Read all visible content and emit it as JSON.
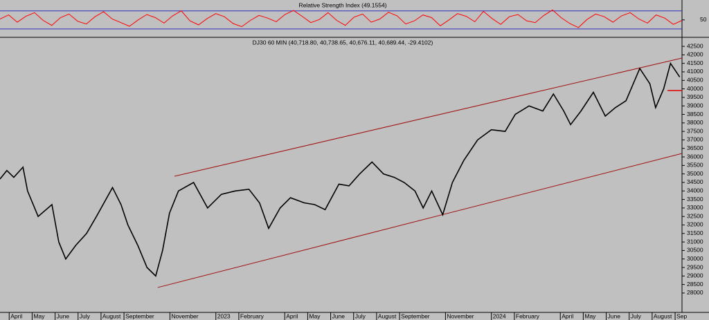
{
  "chart_data": [
    {
      "type": "line",
      "title": "Relative Strength Index (49.1554)",
      "color": "#ff0000",
      "level_color": "#3030c0",
      "values": [
        52,
        61,
        45,
        58,
        66,
        49,
        38,
        55,
        63,
        47,
        41,
        57,
        68,
        52,
        44,
        36,
        50,
        62,
        55,
        43,
        59,
        70,
        48,
        39,
        53,
        64,
        57,
        42,
        35,
        49,
        60,
        54,
        46,
        62,
        71,
        58,
        44,
        51,
        66,
        49,
        38,
        56,
        63,
        45,
        52,
        67,
        59,
        41,
        48,
        61,
        55,
        37,
        50,
        64,
        58,
        46,
        69,
        53,
        40,
        57,
        62,
        48,
        44,
        60,
        72,
        55,
        42,
        33,
        51,
        63,
        57,
        45,
        59,
        66,
        52,
        43,
        61,
        54,
        40,
        49
      ],
      "ylim": [
        13,
        91
      ],
      "yticks": [
        50
      ],
      "levels": [
        30,
        70
      ]
    },
    {
      "type": "line",
      "title": "DJ30 60 MIN (40,718.80, 40,738.65, 40,676.11, 40,689.44, -29.4102)",
      "color": "#000000",
      "trend_color": "#a01010",
      "x": [
        -0.4,
        -0.1,
        0.2,
        0.6,
        0.8,
        1.26,
        1.86,
        2.16,
        2.46,
        2.9,
        3.37,
        3.8,
        4.5,
        4.87,
        5.17,
        5.6,
        6.0,
        6.38,
        6.68,
        6.98,
        7.37,
        8.03,
        8.64,
        9.24,
        9.84,
        10.44,
        10.9,
        11.3,
        11.8,
        12.25,
        12.85,
        13.3,
        13.76,
        14.36,
        14.8,
        15.26,
        15.8,
        16.3,
        16.77,
        17.2,
        17.67,
        18.03,
        18.4,
        18.88,
        19.3,
        19.8,
        20.4,
        21.0,
        21.6,
        22.04,
        22.64,
        23.24,
        23.7,
        24.15,
        24.45,
        24.9,
        25.44,
        25.96,
        26.4,
        26.86,
        27.46,
        27.9,
        28.15,
        28.5,
        28.8,
        29.2
      ],
      "values": [
        34700,
        35200,
        34800,
        35400,
        34000,
        32500,
        33200,
        31000,
        30000,
        30800,
        31500,
        32500,
        34200,
        33200,
        32000,
        30800,
        29500,
        29000,
        30500,
        32700,
        34000,
        34500,
        33000,
        33800,
        34000,
        34100,
        33300,
        31800,
        33000,
        33600,
        33300,
        33200,
        32900,
        34400,
        34300,
        35000,
        35700,
        35000,
        34800,
        34500,
        34000,
        33000,
        34000,
        32600,
        34500,
        35800,
        37000,
        37600,
        37500,
        38500,
        39000,
        38700,
        39700,
        38700,
        37900,
        38700,
        39800,
        38400,
        38900,
        39300,
        41200,
        40300,
        38900,
        40000,
        41500,
        40700
      ],
      "trendlines": [
        {
          "x": [
            7.2,
            29.3
          ],
          "y": [
            34864,
            41810
          ]
        },
        {
          "x": [
            6.47,
            29.3
          ],
          "y": [
            28325,
            36204
          ]
        },
        {
          "x": [
            28.67,
            29.3
          ],
          "y": [
            39900,
            39900
          ]
        }
      ],
      "xlim": [
        -0.4,
        29.3
      ],
      "ylim": [
        26860,
        42990
      ],
      "xticks": [
        {
          "value": 0,
          "label": "April"
        },
        {
          "value": 1,
          "label": "May"
        },
        {
          "value": 2,
          "label": "June"
        },
        {
          "value": 3,
          "label": "July"
        },
        {
          "value": 4,
          "label": "August"
        },
        {
          "value": 5,
          "label": "September"
        },
        {
          "value": 7,
          "label": "November"
        },
        {
          "value": 9,
          "label": "2023"
        },
        {
          "value": 10,
          "label": "February"
        },
        {
          "value": 12,
          "label": "April"
        },
        {
          "value": 13,
          "label": "May"
        },
        {
          "value": 14,
          "label": "June"
        },
        {
          "value": 15,
          "label": "July"
        },
        {
          "value": 16,
          "label": "August"
        },
        {
          "value": 17,
          "label": "September"
        },
        {
          "value": 19,
          "label": "November"
        },
        {
          "value": 21,
          "label": "2024"
        },
        {
          "value": 22,
          "label": "February"
        },
        {
          "value": 24,
          "label": "April"
        },
        {
          "value": 25,
          "label": "May"
        },
        {
          "value": 26,
          "label": "June"
        },
        {
          "value": 27,
          "label": "July"
        },
        {
          "value": 28,
          "label": "August"
        },
        {
          "value": 29,
          "label": "Sep"
        }
      ],
      "yticks": [
        28000,
        28500,
        29000,
        29500,
        30000,
        30500,
        31000,
        31500,
        32000,
        32500,
        33000,
        33500,
        34000,
        34500,
        35000,
        35500,
        36000,
        36500,
        37000,
        37500,
        38000,
        38500,
        39000,
        39500,
        40000,
        40500,
        41000,
        41500,
        42000,
        42500
      ]
    }
  ]
}
